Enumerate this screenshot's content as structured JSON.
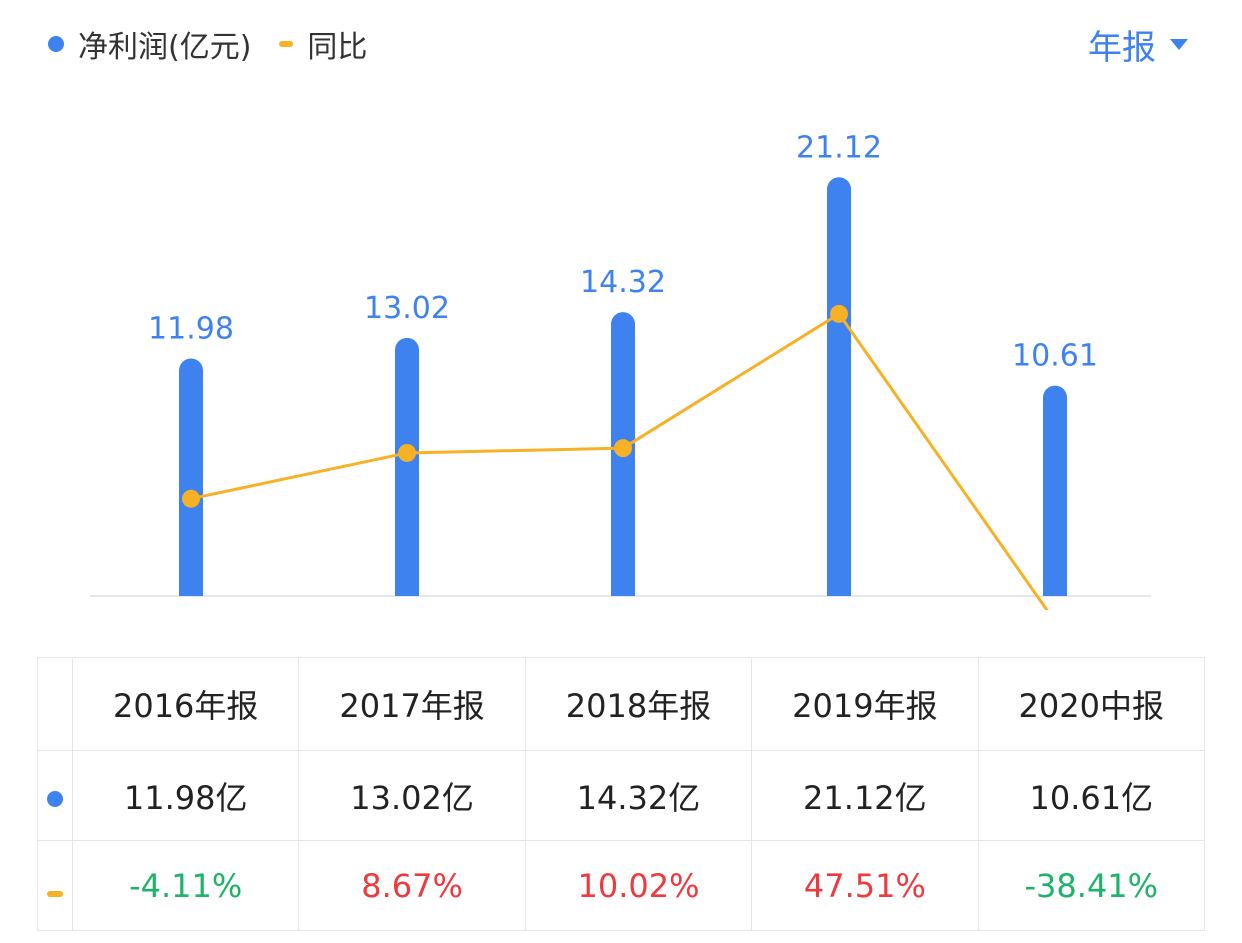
{
  "legend": {
    "series1_label": "净利润(亿元)",
    "series2_label": "同比"
  },
  "period_selector": {
    "label": "年报"
  },
  "colors": {
    "bar": "#3e82f0",
    "line": "#f6b124",
    "positive": "#ee3a3f",
    "negative": "#1db36b",
    "axis": "#e3e6ea"
  },
  "chart_data": {
    "type": "bar",
    "categories": [
      "2016年报",
      "2017年报",
      "2018年报",
      "2019年报",
      "2020中报"
    ],
    "series": [
      {
        "name": "净利润(亿元)",
        "type": "bar",
        "values": [
          11.98,
          13.02,
          14.32,
          21.12,
          10.61
        ]
      },
      {
        "name": "同比",
        "type": "line",
        "values": [
          -4.11,
          8.67,
          10.02,
          47.51,
          -38.41
        ],
        "unit": "%"
      }
    ],
    "data_labels": [
      "11.98",
      "13.02",
      "14.32",
      "21.12",
      "10.61"
    ],
    "legend_position": "top-left"
  },
  "table": {
    "headers": [
      "2016年报",
      "2017年报",
      "2018年报",
      "2019年报",
      "2020中报"
    ],
    "profit": [
      "11.98亿",
      "13.02亿",
      "14.32亿",
      "21.12亿",
      "10.61亿"
    ],
    "yoy": [
      "-4.11%",
      "8.67%",
      "10.02%",
      "47.51%",
      "-38.41%"
    ]
  }
}
